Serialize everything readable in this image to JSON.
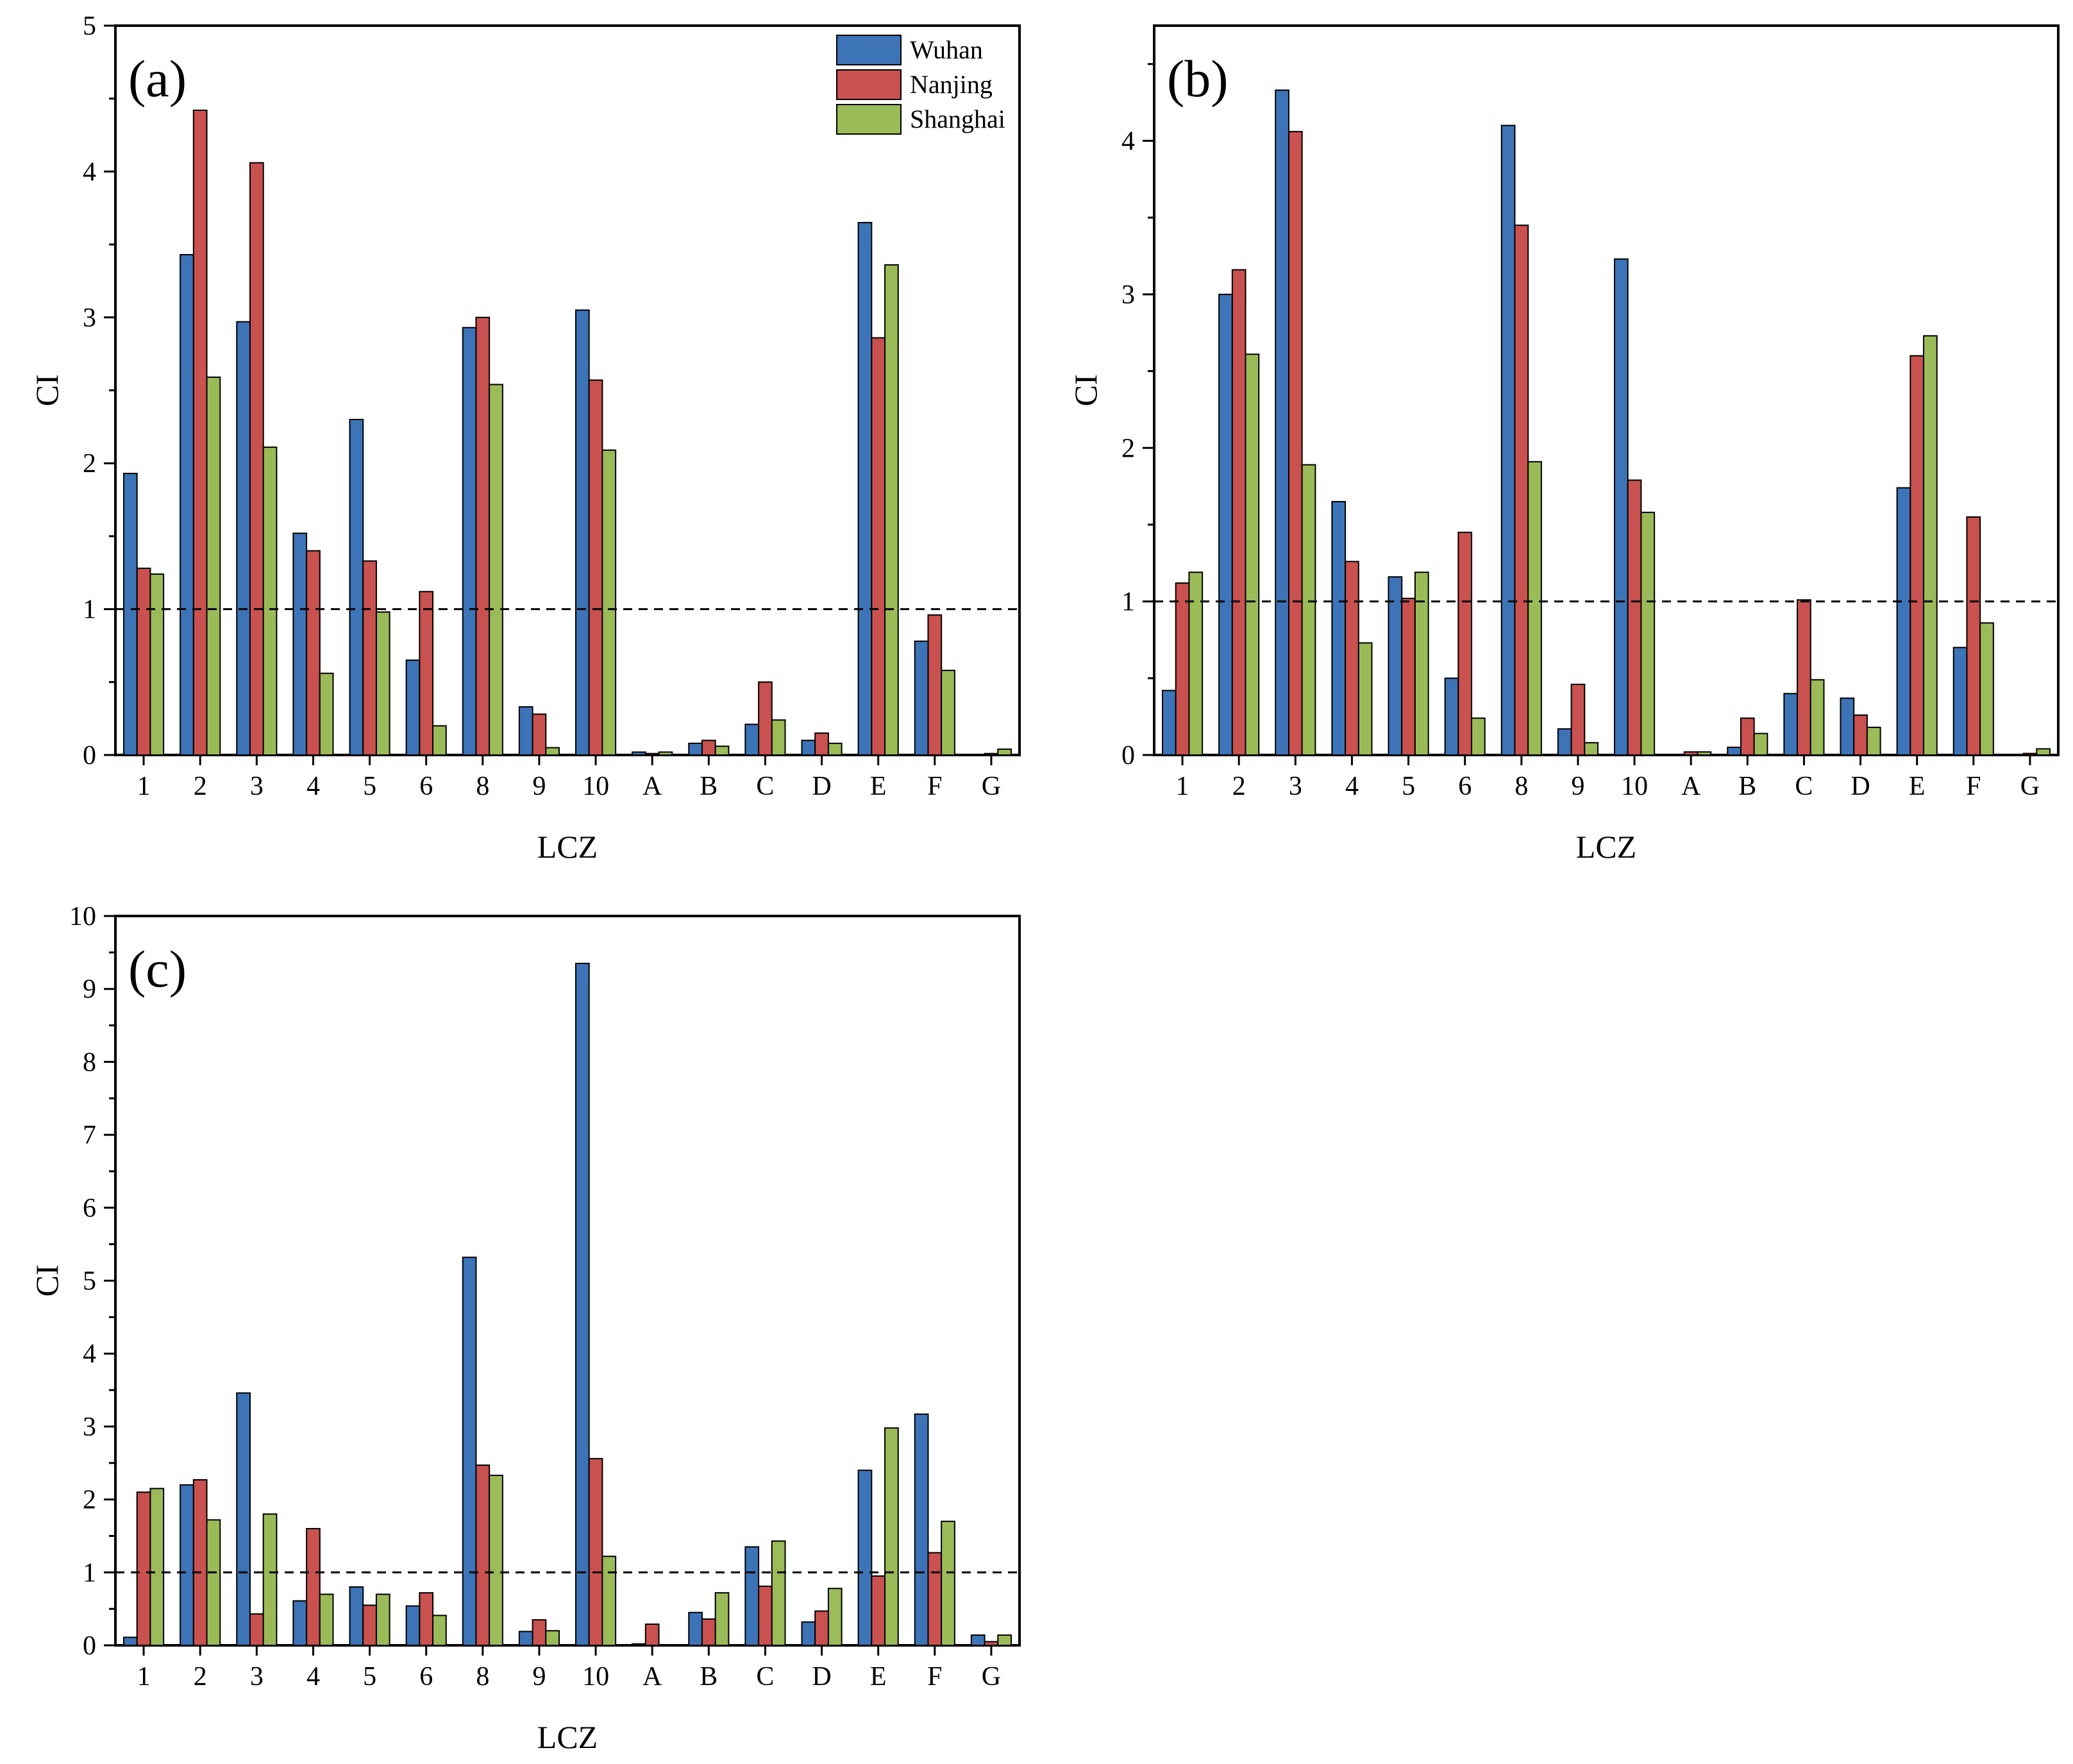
{
  "chart_data": [
    {
      "type": "bar",
      "panel_label": "(a)",
      "xlabel": "LCZ",
      "ylabel": "CI",
      "ylim": [
        0,
        5
      ],
      "yticks": [
        "0",
        "1",
        "2",
        "3",
        "4",
        "5"
      ],
      "reference_line": 1,
      "categories": [
        "1",
        "2",
        "3",
        "4",
        "5",
        "6",
        "8",
        "9",
        "10",
        "A",
        "B",
        "C",
        "D",
        "E",
        "F",
        "G"
      ],
      "series": [
        {
          "name": "Wuhan",
          "values": [
            1.93,
            3.43,
            2.97,
            1.52,
            2.3,
            0.65,
            2.93,
            0.33,
            3.05,
            0.02,
            0.08,
            0.21,
            0.1,
            3.65,
            0.78,
            0.0
          ]
        },
        {
          "name": "Nanjing",
          "values": [
            1.28,
            4.42,
            4.06,
            1.4,
            1.33,
            1.12,
            3.0,
            0.28,
            2.57,
            0.01,
            0.1,
            0.5,
            0.15,
            2.86,
            0.96,
            0.01
          ]
        },
        {
          "name": "Shanghai",
          "values": [
            1.24,
            2.59,
            2.11,
            0.56,
            0.98,
            0.2,
            2.54,
            0.05,
            2.09,
            0.02,
            0.06,
            0.24,
            0.08,
            3.36,
            0.58,
            0.04
          ]
        }
      ],
      "legend": {
        "placement": "top-right",
        "entries": [
          "Wuhan",
          "Nanjing",
          "Shanghai"
        ]
      }
    },
    {
      "type": "bar",
      "panel_label": "(b)",
      "xlabel": "LCZ",
      "ylabel": "CI",
      "ylim": [
        0,
        4.75
      ],
      "yticks": [
        "0",
        "1",
        "2",
        "3",
        "4"
      ],
      "reference_line": 1,
      "categories": [
        "1",
        "2",
        "3",
        "4",
        "5",
        "6",
        "8",
        "9",
        "10",
        "A",
        "B",
        "C",
        "D",
        "E",
        "F",
        "G"
      ],
      "series": [
        {
          "name": "Wuhan",
          "values": [
            0.42,
            3.0,
            4.33,
            1.65,
            1.16,
            0.5,
            4.1,
            0.17,
            3.23,
            0.0,
            0.05,
            0.4,
            0.37,
            1.74,
            0.7,
            0.0
          ]
        },
        {
          "name": "Nanjing",
          "values": [
            1.12,
            3.16,
            4.06,
            1.26,
            1.02,
            1.45,
            3.45,
            0.46,
            1.79,
            0.02,
            0.24,
            1.01,
            0.26,
            2.6,
            1.55,
            0.01
          ]
        },
        {
          "name": "Shanghai",
          "values": [
            1.19,
            2.61,
            1.89,
            0.73,
            1.19,
            0.24,
            1.91,
            0.08,
            1.58,
            0.02,
            0.14,
            0.49,
            0.18,
            2.73,
            0.86,
            0.04
          ]
        }
      ]
    },
    {
      "type": "bar",
      "panel_label": "(c)",
      "xlabel": "LCZ",
      "ylabel": "CI",
      "ylim": [
        0,
        10
      ],
      "yticks": [
        "0",
        "1",
        "2",
        "3",
        "4",
        "5",
        "6",
        "7",
        "8",
        "9",
        "10"
      ],
      "reference_line": 1,
      "categories": [
        "1",
        "2",
        "3",
        "4",
        "5",
        "6",
        "8",
        "9",
        "10",
        "A",
        "B",
        "C",
        "D",
        "E",
        "F",
        "G"
      ],
      "series": [
        {
          "name": "Wuhan",
          "values": [
            0.11,
            2.2,
            3.46,
            0.61,
            0.8,
            0.54,
            5.32,
            0.19,
            9.35,
            0.02,
            0.45,
            1.35,
            0.32,
            2.4,
            3.17,
            0.14
          ]
        },
        {
          "name": "Nanjing",
          "values": [
            2.1,
            2.27,
            0.43,
            1.6,
            0.55,
            0.72,
            2.47,
            0.35,
            2.56,
            0.29,
            0.36,
            0.81,
            0.47,
            0.95,
            1.27,
            0.05
          ]
        },
        {
          "name": "Shanghai",
          "values": [
            2.15,
            1.72,
            1.8,
            0.7,
            0.7,
            0.41,
            2.33,
            0.2,
            1.22,
            0.0,
            0.72,
            1.43,
            0.78,
            2.98,
            1.7,
            0.14
          ]
        }
      ]
    }
  ],
  "colors": {
    "Wuhan": "#3d74b7",
    "Nanjing": "#c9514f",
    "Shanghai": "#9bbb58"
  }
}
